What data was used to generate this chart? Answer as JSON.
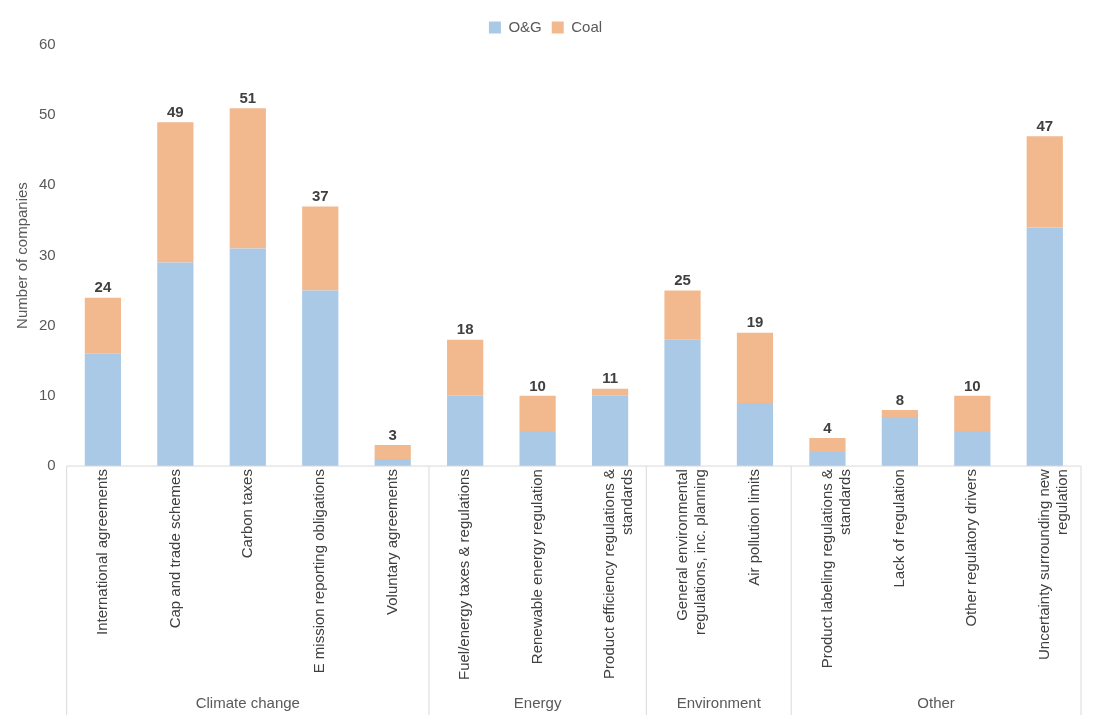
{
  "chart_data": {
    "type": "bar",
    "stacked": true,
    "ylabel": "Number of companies",
    "categories": [
      "International agreements",
      "Cap and trade schemes",
      "Carbon taxes",
      "E mission reporting obligations",
      "Voluntary agreements",
      "Fuel/energy taxes & regulations",
      "Renewable energy regulation",
      "Product efficiency regulations & standards",
      "General environmental regulations, inc. planning",
      "Air pollution limits",
      "Product labeling regulations & standards",
      "Lack of regulation",
      "Other regulatory drivers",
      "Uncertainty surrounding new regulation"
    ],
    "series": [
      {
        "name": "O&G",
        "color": "#a9c9e6",
        "values": [
          16,
          29,
          31,
          25,
          1,
          10,
          5,
          10,
          18,
          9,
          2,
          7,
          5,
          34
        ]
      },
      {
        "name": "Coal",
        "color": "#f2b98e",
        "values": [
          8,
          20,
          20,
          12,
          2,
          8,
          5,
          1,
          7,
          10,
          2,
          1,
          5,
          13
        ]
      }
    ],
    "totals": [
      "24",
      "49",
      "51",
      "37",
      "3",
      "18",
      "10",
      "11",
      "25",
      "19",
      "4",
      "8",
      "10",
      "47"
    ],
    "ylim": [
      0,
      60
    ],
    "yticks": [
      0,
      10,
      20,
      30,
      40,
      50,
      60
    ],
    "grid": false,
    "legend": "top",
    "annotations": [
      "Climate change",
      "Energy",
      "Environment",
      "Other"
    ]
  }
}
